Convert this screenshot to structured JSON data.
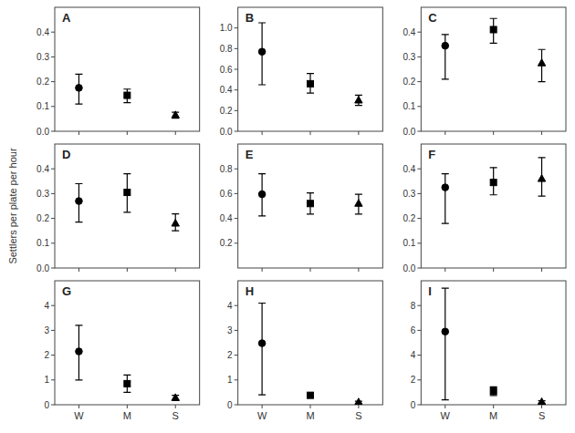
{
  "chart_data": [
    {
      "type": "scatter",
      "title": "A",
      "categories": [
        null,
        null,
        null
      ],
      "values": [
        0.175,
        0.145,
        0.065
      ],
      "error_low": [
        0.065,
        0.03,
        0.012
      ],
      "error_high": [
        0.055,
        0.025,
        0.012
      ],
      "markers": [
        "circle",
        "square",
        "triangle"
      ],
      "color": "black",
      "ylim": [
        0,
        0.5
      ],
      "yticks": [
        {
          "value": 0,
          "label": "0.0"
        },
        0.1,
        0.2,
        0.3,
        0.4
      ],
      "grid": false
    },
    {
      "type": "scatter",
      "title": "B",
      "categories": [
        null,
        null,
        null
      ],
      "values": [
        0.77,
        0.46,
        0.3
      ],
      "error_low": [
        0.32,
        0.09,
        0.05
      ],
      "error_high": [
        0.28,
        0.1,
        0.05
      ],
      "markers": [
        "circle",
        "square",
        "triangle"
      ],
      "color": "black",
      "ylim": [
        0,
        1.2
      ],
      "yticks": [
        {
          "value": 0,
          "label": "0.0"
        },
        0.2,
        0.4,
        0.6,
        0.8,
        {
          "value": 1.0,
          "label": "1.0"
        }
      ],
      "grid": false
    },
    {
      "type": "scatter",
      "title": "C",
      "categories": [
        null,
        null,
        null
      ],
      "values": [
        0.345,
        0.41,
        0.275
      ],
      "error_low": [
        0.135,
        0.055,
        0.075
      ],
      "error_high": [
        0.045,
        0.045,
        0.055
      ],
      "markers": [
        "circle",
        "square",
        "triangle"
      ],
      "color": "black",
      "ylim": [
        0,
        0.5
      ],
      "yticks": [
        {
          "value": 0,
          "label": "0.0"
        },
        0.1,
        0.2,
        0.3,
        0.4
      ],
      "grid": false
    },
    {
      "type": "scatter",
      "title": "D",
      "ylabel": "Settlers per plate per hour",
      "categories": [
        null,
        null,
        null
      ],
      "values": [
        0.27,
        0.305,
        0.18
      ],
      "error_low": [
        0.085,
        0.08,
        0.03
      ],
      "error_high": [
        0.07,
        0.075,
        0.038
      ],
      "markers": [
        "circle",
        "square",
        "triangle"
      ],
      "color": "black",
      "ylim": [
        0,
        0.5
      ],
      "yticks": [
        {
          "value": 0,
          "label": "0.0"
        },
        0.1,
        0.2,
        0.3,
        0.4
      ],
      "grid": false
    },
    {
      "type": "scatter",
      "title": "E",
      "categories": [
        null,
        null,
        null
      ],
      "values": [
        0.595,
        0.52,
        0.52
      ],
      "error_low": [
        0.175,
        0.085,
        0.085
      ],
      "error_high": [
        0.165,
        0.085,
        0.075
      ],
      "markers": [
        "circle",
        "square",
        "triangle"
      ],
      "color": "black",
      "ylim": [
        0,
        1.0
      ],
      "yticks": [
        0.2,
        0.4,
        0.6,
        0.8
      ],
      "grid": false
    },
    {
      "type": "scatter",
      "title": "F",
      "categories": [
        null,
        null,
        null
      ],
      "values": [
        0.325,
        0.345,
        0.36
      ],
      "error_low": [
        0.145,
        0.05,
        0.07
      ],
      "error_high": [
        0.055,
        0.06,
        0.085
      ],
      "markers": [
        "circle",
        "square",
        "triangle"
      ],
      "color": "black",
      "ylim": [
        0,
        0.5
      ],
      "yticks": [
        {
          "value": 0,
          "label": "0.0"
        },
        0.1,
        0.2,
        0.3,
        0.4
      ],
      "grid": false
    },
    {
      "type": "scatter",
      "title": "G",
      "categories": [
        "W",
        "M",
        "S"
      ],
      "values": [
        2.15,
        0.85,
        0.28
      ],
      "error_low": [
        1.15,
        0.35,
        0.1
      ],
      "error_high": [
        1.05,
        0.35,
        0.1
      ],
      "markers": [
        "circle",
        "square",
        "triangle"
      ],
      "color": "black",
      "ylim": [
        0,
        5
      ],
      "yticks": [
        0,
        1,
        2,
        3,
        4
      ],
      "grid": false
    },
    {
      "type": "scatter",
      "title": "H",
      "categories": [
        "W",
        "M",
        "S"
      ],
      "values": [
        2.48,
        0.38,
        0.1
      ],
      "error_low": [
        2.08,
        0.09,
        0.04
      ],
      "error_high": [
        1.62,
        0.09,
        0.04
      ],
      "markers": [
        "circle",
        "square",
        "triangle"
      ],
      "color": "black",
      "ylim": [
        0,
        5
      ],
      "yticks": [
        0,
        1,
        2,
        3,
        4
      ],
      "grid": false
    },
    {
      "type": "scatter",
      "title": "I",
      "categories": [
        "W",
        "M",
        "S"
      ],
      "values": [
        5.9,
        1.1,
        0.22
      ],
      "error_low": [
        5.5,
        0.35,
        0.1
      ],
      "error_high": [
        3.5,
        0.35,
        0.1
      ],
      "markers": [
        "circle",
        "square",
        "triangle"
      ],
      "color": "black",
      "ylim": [
        0,
        10
      ],
      "yticks": [
        0,
        2,
        4,
        6,
        8
      ],
      "grid": false
    }
  ]
}
